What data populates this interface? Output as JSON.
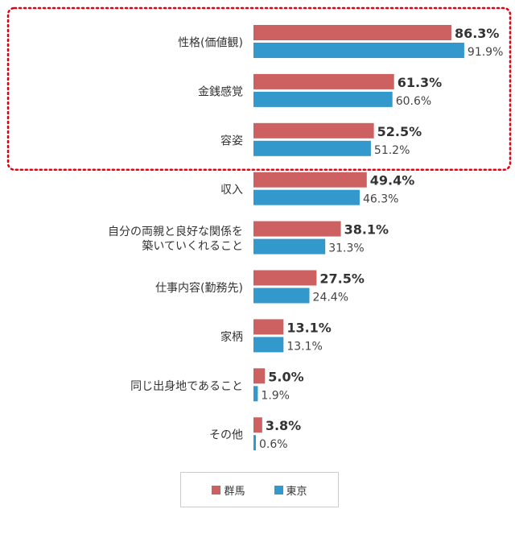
{
  "chart_data": {
    "type": "bar",
    "orientation": "horizontal",
    "categories": [
      [
        "性格(価値観)"
      ],
      [
        "金銭感覚"
      ],
      [
        "容姿"
      ],
      [
        "収入"
      ],
      [
        "自分の両親と良好な関係を",
        "築いていくれること"
      ],
      [
        "仕事内容(勤務先)"
      ],
      [
        "家柄"
      ],
      [
        "同じ出身地であること"
      ],
      [
        "その他"
      ]
    ],
    "series": [
      {
        "name": "群馬",
        "color": "#cd6161",
        "values": [
          86.3,
          61.3,
          52.5,
          49.4,
          38.1,
          27.5,
          13.1,
          5.0,
          3.8
        ],
        "labels": [
          "86.3%",
          "61.3%",
          "52.5%",
          "49.4%",
          "38.1%",
          "27.5%",
          "13.1%",
          "5.0%",
          "3.8%"
        ]
      },
      {
        "name": "東京",
        "color": "#3399cc",
        "values": [
          91.9,
          60.6,
          51.2,
          46.3,
          31.3,
          24.4,
          13.1,
          1.9,
          0.6
        ],
        "labels": [
          "91.9%",
          "60.6%",
          "51.2%",
          "46.3%",
          "31.3%",
          "24.4%",
          "13.1%",
          "1.9%",
          "0.6%"
        ]
      }
    ],
    "xlim": [
      0,
      100
    ],
    "highlighted_categories": [
      0,
      1,
      2
    ],
    "highlight_color": "#e60012",
    "grid": false,
    "legend_position": "bottom-center"
  }
}
